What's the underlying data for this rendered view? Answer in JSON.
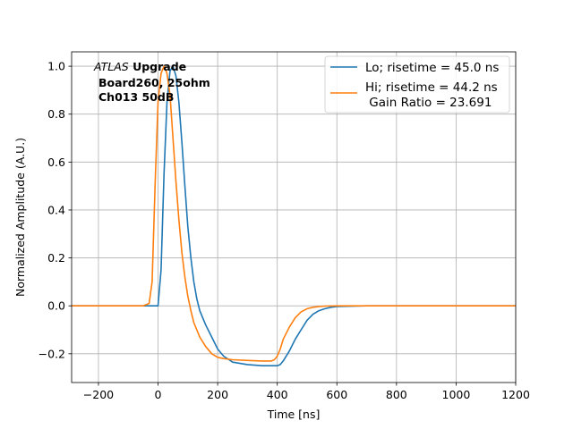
{
  "chart_data": {
    "type": "line",
    "xlabel": "Time [ns]",
    "ylabel": "Normalized Amplitude (A.U.)",
    "xlim": [
      -290,
      1200
    ],
    "ylim": [
      -0.32,
      1.06
    ],
    "xticks": [
      -200,
      0,
      200,
      400,
      600,
      800,
      1000,
      1200
    ],
    "xtick_labels": [
      "−200",
      "0",
      "200",
      "400",
      "600",
      "800",
      "1000",
      "1200"
    ],
    "yticks": [
      -0.2,
      0.0,
      0.2,
      0.4,
      0.6,
      0.8,
      1.0
    ],
    "ytick_labels": [
      "−0.2",
      "0.0",
      "0.2",
      "0.4",
      "0.6",
      "0.8",
      "1.0"
    ],
    "grid": true,
    "legend_position": "top-right",
    "annotation": {
      "italic": "ATLAS",
      "bold": " Upgrade",
      "line2": "Board260, 25ohm",
      "line3": "Ch013 50dB"
    },
    "series": [
      {
        "name": "Lo; risetime = 45.0 ns",
        "color": "#1f77b4",
        "x": [
          -290,
          -100,
          0,
          10,
          20,
          30,
          40,
          50,
          60,
          70,
          80,
          90,
          100,
          110,
          120,
          130,
          140,
          160,
          180,
          200,
          220,
          250,
          300,
          350,
          380,
          400,
          410,
          420,
          440,
          460,
          480,
          500,
          520,
          540,
          560,
          580,
          600,
          700,
          800,
          900,
          1000,
          1100,
          1200
        ],
        "values": [
          0.0,
          0.0,
          0.0,
          0.15,
          0.55,
          0.85,
          0.98,
          1.0,
          0.96,
          0.85,
          0.68,
          0.5,
          0.33,
          0.2,
          0.1,
          0.03,
          -0.02,
          -0.08,
          -0.13,
          -0.18,
          -0.21,
          -0.235,
          -0.245,
          -0.25,
          -0.25,
          -0.25,
          -0.245,
          -0.23,
          -0.19,
          -0.14,
          -0.1,
          -0.06,
          -0.035,
          -0.02,
          -0.012,
          -0.006,
          -0.003,
          0.0,
          0.0,
          0.0,
          0.0,
          0.0,
          0.0
        ]
      },
      {
        "name": "Hi; risetime = 44.2 ns",
        "name_line2": " Gain Ratio = 23.691",
        "color": "#ff7f0e",
        "x": [
          -290,
          -50,
          -30,
          -20,
          -10,
          0,
          10,
          20,
          30,
          40,
          50,
          60,
          70,
          80,
          90,
          100,
          110,
          120,
          140,
          160,
          180,
          200,
          220,
          250,
          300,
          350,
          380,
          390,
          400,
          410,
          420,
          440,
          460,
          480,
          500,
          520,
          540,
          560,
          600,
          700,
          800,
          900,
          1000,
          1100,
          1200
        ],
        "values": [
          0.0,
          0.0,
          0.01,
          0.1,
          0.5,
          0.85,
          0.97,
          1.0,
          0.97,
          0.88,
          0.7,
          0.52,
          0.36,
          0.22,
          0.12,
          0.04,
          -0.02,
          -0.07,
          -0.13,
          -0.17,
          -0.2,
          -0.215,
          -0.22,
          -0.225,
          -0.228,
          -0.23,
          -0.23,
          -0.225,
          -0.21,
          -0.18,
          -0.14,
          -0.09,
          -0.05,
          -0.025,
          -0.012,
          -0.006,
          -0.003,
          -0.001,
          0.0,
          0.0,
          0.0,
          0.0,
          0.0,
          0.0,
          0.0
        ]
      }
    ]
  }
}
